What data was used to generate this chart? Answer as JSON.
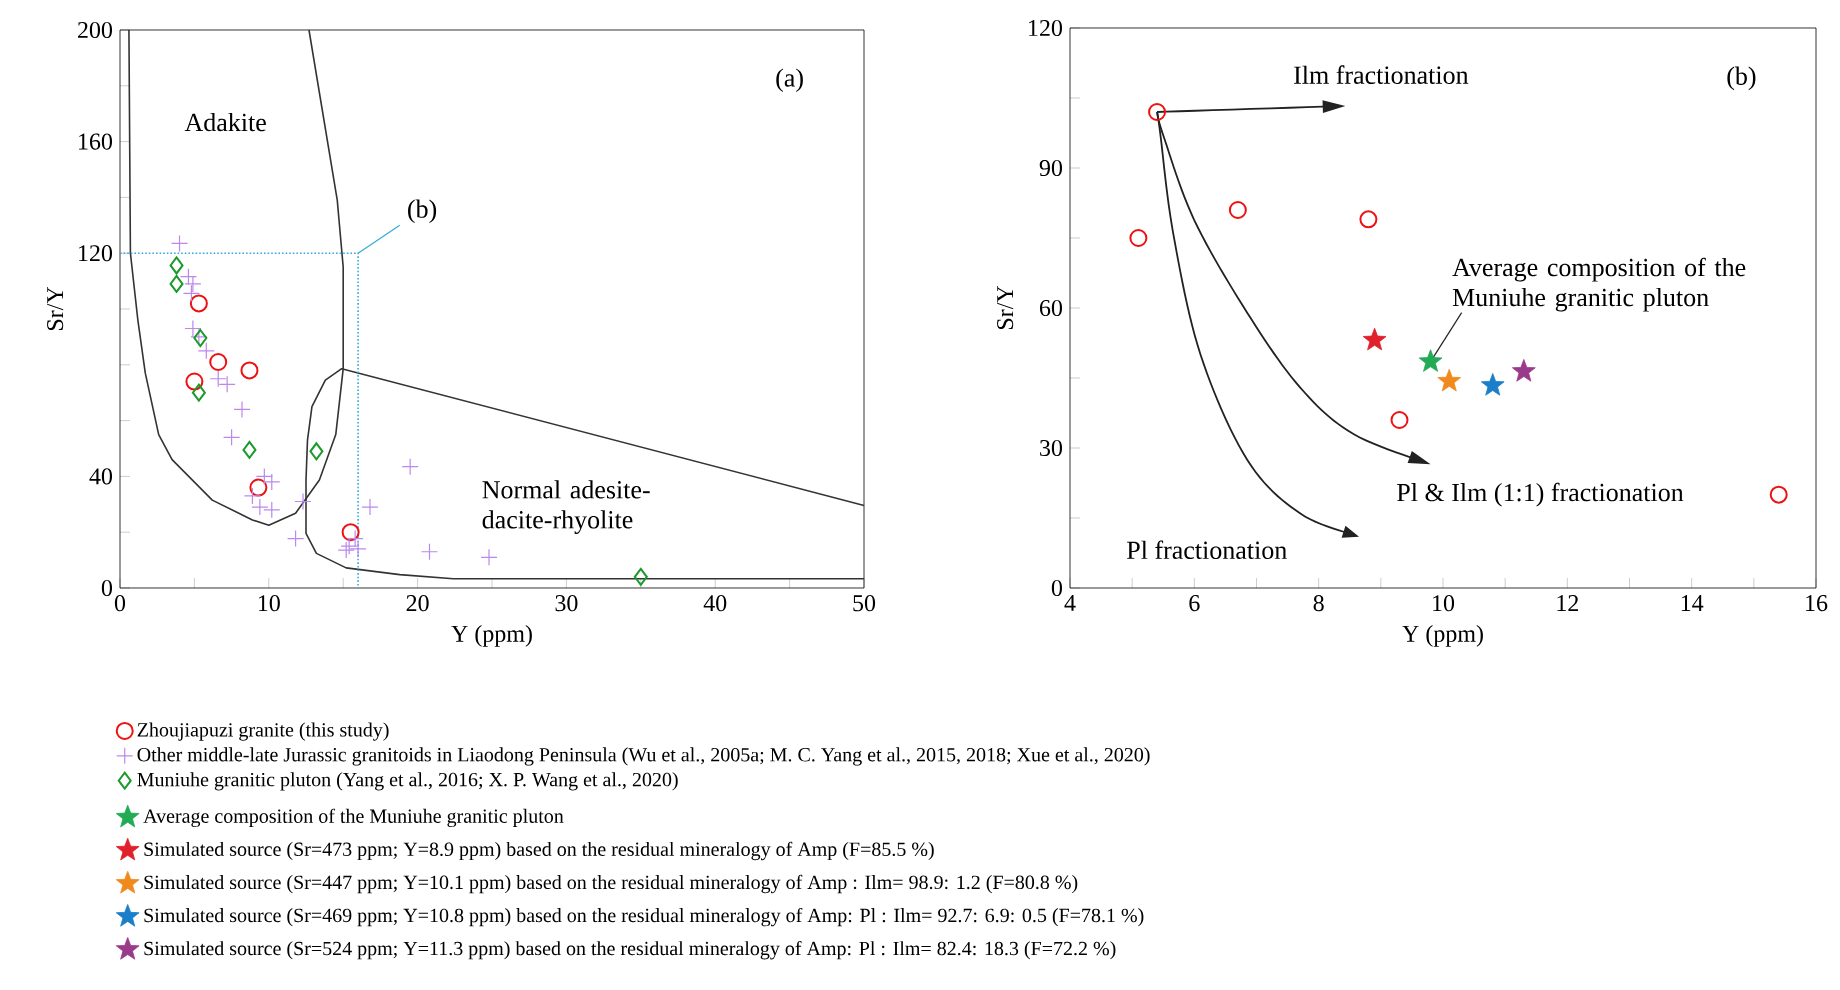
{
  "chart_data": [
    {
      "type": "scatter",
      "xlabel": "Y (ppm)",
      "ylabel": "Sr/Y",
      "xlim": [
        0,
        50
      ],
      "ylim": [
        0,
        200
      ],
      "xticks": [
        0,
        {
          "value": 5,
          "label": null
        },
        10,
        {
          "value": 15,
          "label": null
        },
        20,
        {
          "value": 25,
          "label": null
        },
        30,
        {
          "value": 35,
          "label": null
        },
        40,
        {
          "value": 45,
          "label": null
        },
        50
      ],
      "yticks": [
        0,
        {
          "value": 20,
          "label": null
        },
        40,
        {
          "value": 60,
          "label": null
        },
        {
          "value": 80,
          "label": null
        },
        {
          "value": 100,
          "label": null
        },
        120,
        {
          "value": 140,
          "label": null
        },
        160,
        {
          "value": 180,
          "label": null
        },
        200
      ],
      "legend": "bottom",
      "annotations": [
        "(a)",
        "Adakite",
        "Normal adesite-dacite-rhyolite",
        {
          "text": "(b)",
          "x": 16,
          "y": 120
        }
      ],
      "series": [
        {
          "type": "line",
          "color": "#333333",
          "line_style": "solid",
          "marker": "none",
          "x": [
            12.7,
            14.6,
            15.0,
            15.0,
            14.5,
            13.4,
            11.8,
            10.0,
            8.9,
            6.2,
            3.5,
            2.6,
            1.7,
            1.2,
            0.7,
            0.6
          ],
          "values": [
            200,
            139,
            115,
            78.6,
            55,
            38.7,
            26.8,
            22.5,
            24.4,
            31.5,
            46,
            55,
            77,
            96,
            120,
            200
          ]
        },
        {
          "type": "line",
          "color": "#333333",
          "line_style": "solid",
          "marker": "none",
          "x": [
            50,
            14.9,
            13.8,
            12.9,
            12.6,
            12.5,
            12.5,
            13.2,
            15.2,
            18.8,
            22.4,
            50
          ],
          "values": [
            29.6,
            78.6,
            74.5,
            65,
            53,
            38.7,
            19.6,
            12.4,
            7.2,
            4.8,
            3.3,
            3.3
          ]
        },
        {
          "type": "line",
          "color": "#33aadd",
          "line_style": "dotted",
          "marker": "none",
          "x": [
            0,
            16,
            16
          ],
          "values": [
            120,
            120,
            0
          ]
        },
        {
          "name": "Zhoujiapuzi granite (this study)",
          "color": "#ee1111",
          "marker": "circle",
          "x": [
            5.3,
            6.6,
            8.7,
            5.0,
            9.3,
            15.5
          ],
          "values": [
            102,
            81,
            78,
            74,
            36,
            20
          ]
        },
        {
          "name": "Other middle-late Jurassic granitoids in Liaodong Peninsula (Wu et al., 2005a; M. C. Yang et al., 2015, 2018; Xue et al., 2020)",
          "color": "#bb88ee",
          "marker": "cross",
          "x": [
            4.0,
            4.6,
            4.9,
            4.8,
            4.9,
            5.3,
            5.8,
            6.6,
            7.2,
            8.2,
            7.5,
            9.7,
            10.2,
            8.9,
            9.4,
            10.2,
            12.3,
            11.8,
            16.8,
            19.5,
            20.8,
            24.8,
            15.4,
            16.0,
            15.8,
            15.2
          ],
          "values": [
            123.5,
            111.6,
            109,
            105.6,
            93,
            90,
            85,
            75,
            73,
            64,
            54,
            40,
            38,
            33,
            29,
            28,
            31,
            17.7,
            29,
            43.5,
            13,
            11,
            15,
            14,
            17.7,
            13.6
          ]
        },
        {
          "name": "Muniuhe granitic pluton (Yang et al., 2016; X. P. Wang et al., 2020)",
          "color": "#1a9a2a",
          "marker": "diamond",
          "x": [
            3.8,
            3.8,
            5.4,
            5.3,
            8.7,
            13.2,
            35
          ],
          "values": [
            115.6,
            109,
            89.6,
            70,
            49.5,
            49,
            4
          ]
        }
      ]
    },
    {
      "type": "scatter",
      "xlabel": "Y (ppm)",
      "ylabel": "Sr/Y",
      "xlim": [
        4,
        16
      ],
      "ylim": [
        0,
        120
      ],
      "xticks": [
        4,
        {
          "value": 5,
          "label": null
        },
        6,
        {
          "value": 7,
          "label": null
        },
        8,
        {
          "value": 9,
          "label": null
        },
        10,
        {
          "value": 11,
          "label": null
        },
        12,
        {
          "value": 13,
          "label": null
        },
        14,
        {
          "value": 15,
          "label": null
        },
        16
      ],
      "yticks": [
        0,
        {
          "value": 15,
          "label": null
        },
        30,
        {
          "value": 45,
          "label": null
        },
        60,
        {
          "value": 75,
          "label": null
        },
        90,
        {
          "value": 105,
          "label": null
        },
        120
      ],
      "legend": "bottom",
      "annotations": [
        "(b)",
        "Ilm fractionation",
        {
          "text": "Average composition of the Muniuhe granitic pluton",
          "x": 9.8,
          "y": 48.5
        },
        "Pl & Ilm (1:1) fractionation",
        "Pl fractionation"
      ],
      "series": [
        {
          "color": "#ee1111",
          "marker": "circle",
          "x": [
            5.1,
            5.4,
            6.7,
            8.8,
            9.3,
            15.4
          ],
          "values": [
            75,
            102,
            81,
            79,
            36,
            20
          ]
        },
        {
          "name": "Average composition of the Muniuhe granitic pluton",
          "color": "#22aa55",
          "marker": "star",
          "x": [
            9.8
          ],
          "values": [
            48.5
          ]
        },
        {
          "name": "Simulated source (Sr=473 ppm; Y=8.9 ppm) based on the residual mineralogy of Amp (F=85.5 %)",
          "color": "#e0202a",
          "marker": "star",
          "x": [
            8.9
          ],
          "values": [
            53.1
          ]
        },
        {
          "name": "Simulated source (Sr=447 ppm; Y=10.1 ppm) based on the residual mineralogy of Amp : Ilm= 98.9: 1.2 (F=80.8 %)",
          "color": "#f08a1c",
          "marker": "star",
          "x": [
            10.1
          ],
          "values": [
            44.3
          ]
        },
        {
          "name": "Simulated source (Sr=469 ppm; Y=10.8 ppm) based on the residual mineralogy of Amp: Pl : Ilm= 92.7: 6.9: 0.5 (F=78.1 %)",
          "color": "#1a7fc8",
          "marker": "star",
          "x": [
            10.8
          ],
          "values": [
            43.4
          ]
        },
        {
          "name": "Simulated source (Sr=524 ppm; Y=11.3 ppm) based on the residual mineralogy of Amp: Pl : Ilm= 82.4: 18.3 (F=72.2 %)",
          "color": "#9a3a8a",
          "marker": "star",
          "x": [
            11.3
          ],
          "values": [
            46.4
          ]
        }
      ]
    }
  ]
}
